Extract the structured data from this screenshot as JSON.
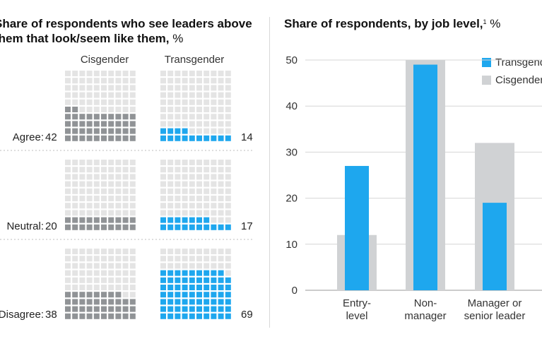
{
  "left_panel": {
    "title_line1": "Share of respondents who see leaders above",
    "title_line2": "them that look/seem like them,",
    "title_unit": "%",
    "column_headers": [
      "Cisgender",
      "Transgender"
    ],
    "rows": [
      {
        "label": "Agree:",
        "cisgender": 42,
        "transgender": 14
      },
      {
        "label": "Neutral:",
        "cisgender": 20,
        "transgender": 17
      },
      {
        "label": "Disagree:",
        "cisgender": 38,
        "transgender": 69
      }
    ]
  },
  "right_panel": {
    "title": "Share of respondents, by job level,",
    "footnote_marker": "1",
    "unit": "%"
  },
  "colors": {
    "transgender": "#1ea7ee",
    "cisgender": "#d0d2d4",
    "waffle_empty": "#e4e4e4",
    "waffle_cis_filled": "#909396"
  },
  "chart_data": [
    {
      "type": "waffle",
      "title": "Share of respondents who see leaders above them that look/seem like them, %",
      "series": [
        {
          "name": "Cisgender",
          "values": [
            42,
            20,
            38
          ]
        },
        {
          "name": "Transgender",
          "values": [
            14,
            17,
            69
          ]
        }
      ],
      "categories": [
        "Agree",
        "Neutral",
        "Disagree"
      ]
    },
    {
      "type": "bar",
      "title": "Share of respondents, by job level, %",
      "categories": [
        "Entry-\nlevel",
        "Non-\nmanager",
        "Manager or\nsenior leader"
      ],
      "series": [
        {
          "name": "Transgender",
          "values": [
            27,
            49,
            19
          ]
        },
        {
          "name": "Cisgender",
          "values": [
            12,
            50,
            32
          ]
        }
      ],
      "ylim": [
        0,
        50
      ],
      "yticks": [
        0,
        10,
        20,
        30,
        40,
        50
      ],
      "grid": true,
      "legend": "top-right"
    }
  ]
}
